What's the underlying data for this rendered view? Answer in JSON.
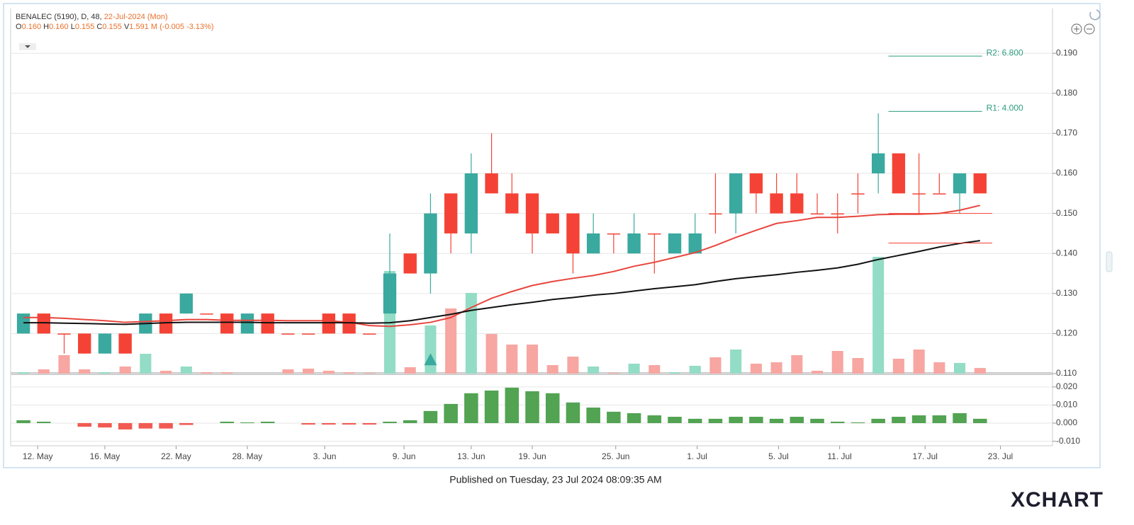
{
  "chart_data": {
    "type": "candlestick",
    "header": {
      "symbol": "BENALEC (5190), D, 48,",
      "date": "22-Jul-2024 (Mon)",
      "ohlcv": [
        {
          "key": "O",
          "value": "0.160"
        },
        {
          "key": "H",
          "value": "0.160"
        },
        {
          "key": "L",
          "value": "0.155"
        },
        {
          "key": "C",
          "value": "0.155"
        },
        {
          "key": "V",
          "value": "1.591 M"
        }
      ],
      "change": "(-0.005 -3.13%)"
    },
    "footer": "Published on Tuesday, 23 Jul 2024 08:09:35 AM",
    "logo": "XCHART",
    "up_color": "#3aa99f",
    "down_color": "#f44336",
    "volume_up_color": "#93dcc6",
    "volume_down_color": "#f7a6a2",
    "open": [
      0.12,
      0.125,
      0.12,
      0.12,
      0.115,
      0.12,
      0.12,
      0.125,
      0.125,
      0.125,
      0.125,
      0.12,
      0.125,
      0.12,
      0.12,
      0.125,
      0.125,
      0.12,
      0.125,
      0.14,
      0.135,
      0.155,
      0.145,
      0.16,
      0.155,
      0.155,
      0.15,
      0.15,
      0.14,
      0.145,
      0.14,
      0.145,
      0.14,
      0.14,
      0.15,
      0.15,
      0.16,
      0.155,
      0.155,
      0.15,
      0.15,
      0.155,
      0.16,
      0.165,
      0.155,
      0.155,
      0.155,
      0.16
    ],
    "high": [
      0.125,
      0.125,
      0.12,
      0.12,
      0.12,
      0.12,
      0.125,
      0.125,
      0.13,
      0.125,
      0.125,
      0.125,
      0.125,
      0.12,
      0.12,
      0.125,
      0.125,
      0.12,
      0.145,
      0.14,
      0.155,
      0.155,
      0.165,
      0.17,
      0.16,
      0.155,
      0.15,
      0.15,
      0.15,
      0.145,
      0.15,
      0.145,
      0.145,
      0.15,
      0.16,
      0.16,
      0.16,
      0.16,
      0.16,
      0.155,
      0.155,
      0.16,
      0.175,
      0.165,
      0.165,
      0.16,
      0.16,
      0.16
    ],
    "low": [
      0.12,
      0.12,
      0.115,
      0.115,
      0.115,
      0.115,
      0.12,
      0.12,
      0.125,
      0.125,
      0.12,
      0.12,
      0.12,
      0.12,
      0.12,
      0.12,
      0.12,
      0.12,
      0.125,
      0.135,
      0.13,
      0.14,
      0.14,
      0.155,
      0.15,
      0.14,
      0.145,
      0.135,
      0.14,
      0.14,
      0.14,
      0.135,
      0.14,
      0.14,
      0.145,
      0.145,
      0.15,
      0.15,
      0.15,
      0.15,
      0.145,
      0.15,
      0.155,
      0.155,
      0.15,
      0.155,
      0.15,
      0.155
    ],
    "close": [
      0.125,
      0.12,
      0.12,
      0.115,
      0.12,
      0.115,
      0.125,
      0.12,
      0.13,
      0.125,
      0.12,
      0.125,
      0.12,
      0.12,
      0.12,
      0.12,
      0.12,
      0.12,
      0.135,
      0.135,
      0.15,
      0.145,
      0.16,
      0.155,
      0.15,
      0.145,
      0.145,
      0.14,
      0.145,
      0.145,
      0.145,
      0.145,
      0.145,
      0.145,
      0.15,
      0.16,
      0.155,
      0.15,
      0.15,
      0.15,
      0.15,
      0.155,
      0.165,
      0.155,
      0.155,
      0.155,
      0.16,
      0.155
    ],
    "volume": [
      0.4,
      1.2,
      5.2,
      1.2,
      0.4,
      2,
      5.6,
      0.8,
      2,
      0.4,
      0.4,
      0,
      0,
      1.2,
      1.4,
      0.8,
      0.4,
      0.2,
      29,
      1.8,
      13.6,
      18.4,
      22.8,
      11.2,
      8.2,
      8.2,
      2.4,
      4.8,
      2,
      0.2,
      2.8,
      2.4,
      0.4,
      2.2,
      4.6,
      6.8,
      2.8,
      3.2,
      5.2,
      0.8,
      6.4,
      4.4,
      33,
      4.2,
      6.8,
      3.2,
      3,
      1.591
    ],
    "ma": [
      {
        "color": "#e8453c",
        "values": [
          0.124,
          0.124,
          0.1238,
          0.1235,
          0.1232,
          0.1228,
          0.123,
          0.1232,
          0.1235,
          0.1235,
          0.1233,
          0.1233,
          0.1233,
          0.1232,
          0.1232,
          0.1232,
          0.1228,
          0.122,
          0.1218,
          0.1222,
          0.1228,
          0.124,
          0.1265,
          0.1288,
          0.1305,
          0.132,
          0.133,
          0.1338,
          0.1345,
          0.1355,
          0.1368,
          0.1378,
          0.139,
          0.1402,
          0.142,
          0.144,
          0.1458,
          0.1475,
          0.1482,
          0.149,
          0.149,
          0.1493,
          0.1497,
          0.1498,
          0.1498,
          0.15,
          0.1508,
          0.152
        ]
      },
      {
        "color": "#111111",
        "values": [
          0.1227,
          0.1227,
          0.1226,
          0.1225,
          0.1224,
          0.1223,
          0.1225,
          0.1227,
          0.1228,
          0.1228,
          0.1228,
          0.1228,
          0.1227,
          0.1227,
          0.1227,
          0.1227,
          0.1227,
          0.1226,
          0.1227,
          0.1232,
          0.124,
          0.1248,
          0.1258,
          0.1265,
          0.1272,
          0.1278,
          0.1285,
          0.129,
          0.1296,
          0.13,
          0.1306,
          0.1312,
          0.1317,
          0.1322,
          0.133,
          0.1337,
          0.1342,
          0.1347,
          0.1353,
          0.1358,
          0.1364,
          0.1373,
          0.1385,
          0.1395,
          0.1405,
          0.1416,
          0.1425,
          0.1432
        ]
      }
    ],
    "levels": [
      {
        "label": "R2: 6.800",
        "value": 0.1893
      },
      {
        "label": "R1: 4.000",
        "value": 0.1755
      }
    ],
    "level_color": "#2e9e7f",
    "hlines": [
      0.15,
      0.1426
    ],
    "signals": [
      {
        "index": 20,
        "value": 0.1135
      }
    ],
    "macd": [
      0.0016,
      0.0008,
      0,
      -0.002,
      -0.0024,
      -0.0035,
      -0.003,
      -0.003,
      -0.001,
      0,
      0.0008,
      0.0004,
      0.0008,
      0,
      -0.0008,
      -0.0008,
      -0.0008,
      -0.0008,
      0.0008,
      0.0016,
      0.0067,
      0.0106,
      0.0165,
      0.018,
      0.0196,
      0.0176,
      0.0165,
      0.0114,
      0.0086,
      0.0063,
      0.0055,
      0.0043,
      0.0035,
      0.0024,
      0.0024,
      0.0035,
      0.0035,
      0.0024,
      0.0035,
      0.0024,
      0.0008,
      0.0004,
      0.0024,
      0.0035,
      0.0043,
      0.0043,
      0.0055,
      0.0024
    ],
    "macd_up_color": "#52a352",
    "macd_down_color": "#f15b52",
    "xlim": [
      -0.63,
      50.56
    ],
    "xticks": [
      {
        "value": 0.7,
        "label": "12. May"
      },
      {
        "value": 4.0,
        "label": "16. May"
      },
      {
        "value": 7.5,
        "label": "22. May"
      },
      {
        "value": 11.0,
        "label": "28. May"
      },
      {
        "value": 14.8,
        "label": "3. Jun"
      },
      {
        "value": 18.7,
        "label": "9. Jun"
      },
      {
        "value": 22.0,
        "label": "13. Jun"
      },
      {
        "value": 25.0,
        "label": "19. Jun"
      },
      {
        "value": 29.1,
        "label": "25. Jun"
      },
      {
        "value": 33.1,
        "label": "1. Jul"
      },
      {
        "value": 37.1,
        "label": "5. Jul"
      },
      {
        "value": 40.1,
        "label": "11. Jul"
      },
      {
        "value": 44.3,
        "label": "17. Jul"
      },
      {
        "value": 48.0,
        "label": "23. Jul"
      }
    ],
    "ylim": [
      0.11,
      0.201
    ],
    "yticks": [
      {
        "value": 0.11,
        "label": "0.110"
      },
      {
        "value": 0.12,
        "label": "0.120"
      },
      {
        "value": 0.13,
        "label": "0.130"
      },
      {
        "value": 0.14,
        "label": "0.140"
      },
      {
        "value": 0.15,
        "label": "0.150"
      },
      {
        "value": 0.16,
        "label": "0.160"
      },
      {
        "value": 0.17,
        "label": "0.170"
      },
      {
        "value": 0.18,
        "label": "0.180"
      },
      {
        "value": 0.19,
        "label": "0.190"
      }
    ],
    "y2lim": [
      -0.0125,
      0.0258
    ],
    "y2ticks": [
      {
        "value": -0.01,
        "label": "-0.010"
      },
      {
        "value": 0.0,
        "label": "0.000"
      },
      {
        "value": 0.01,
        "label": "0.010"
      },
      {
        "value": 0.02,
        "label": "0.020"
      }
    ],
    "grid": true
  }
}
